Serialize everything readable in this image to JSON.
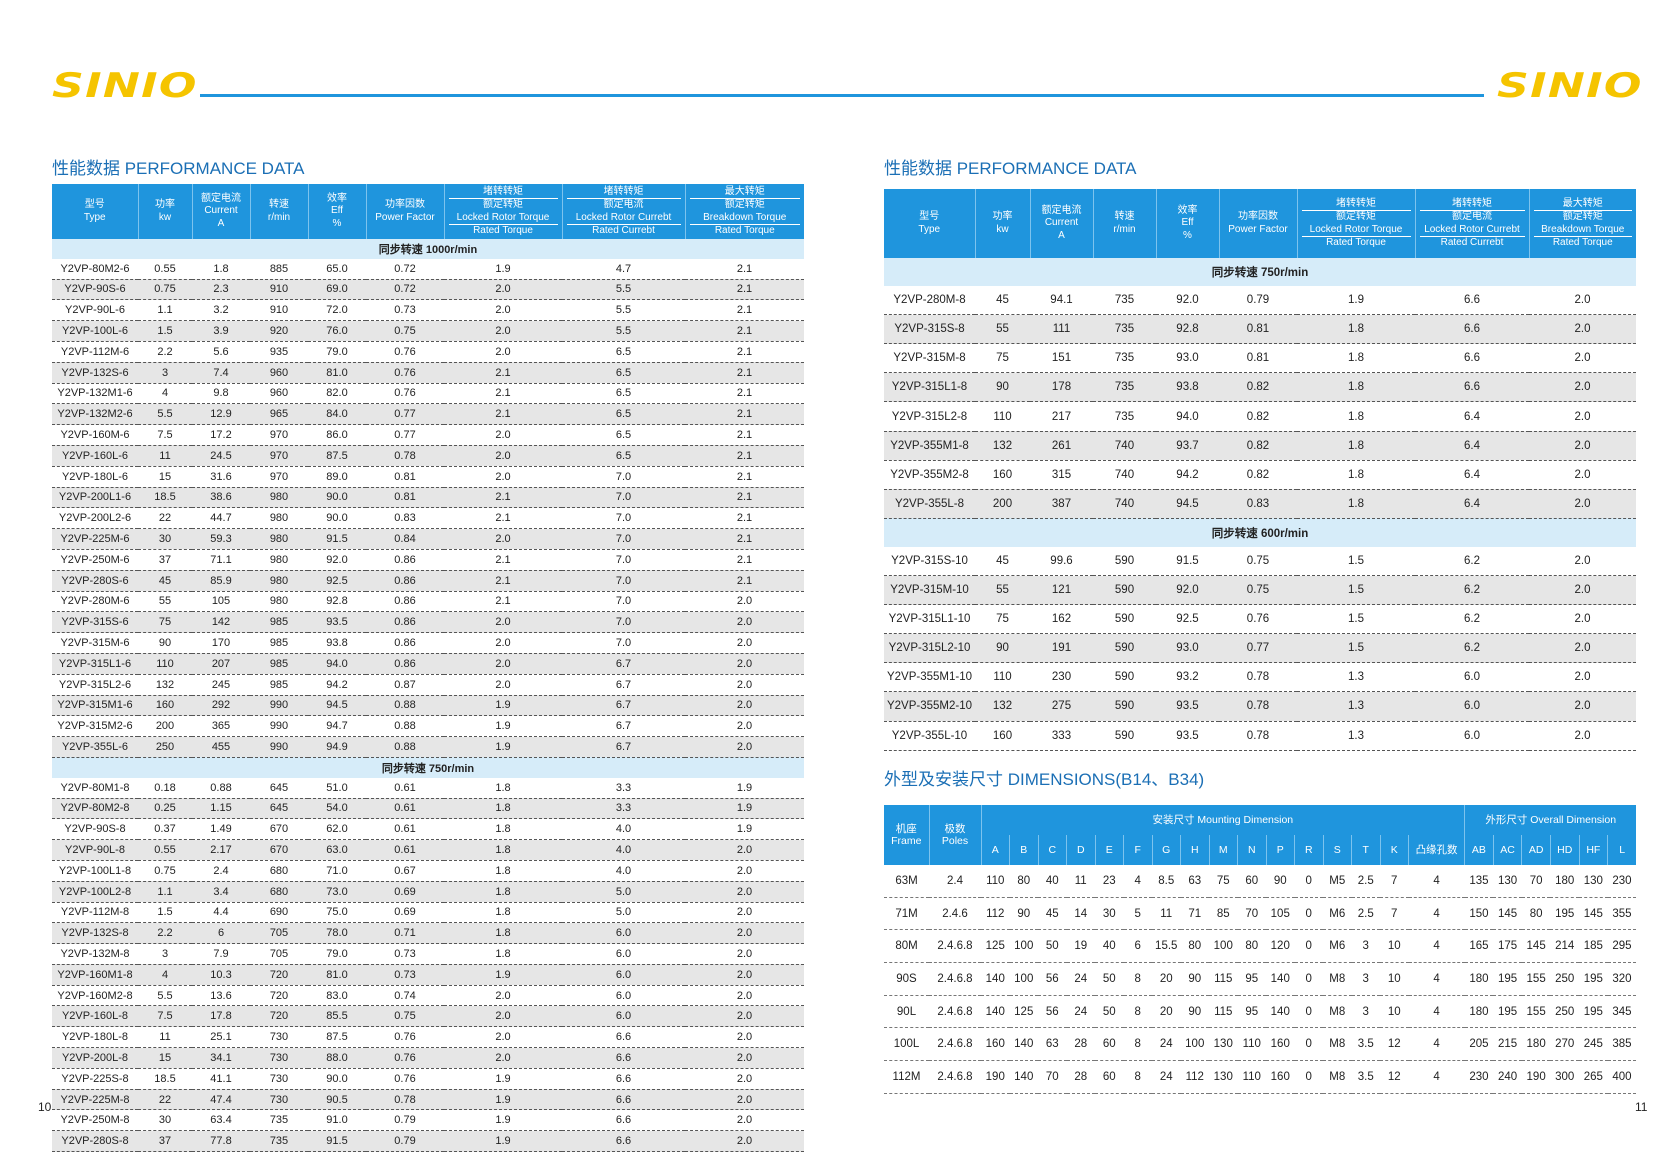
{
  "header": {
    "logo_left": "SINIO",
    "logo_right": "SINIO"
  },
  "left": {
    "title": "性能数据 PERFORMANCE DATA",
    "page_number": "10",
    "table": {
      "columns": [
        [
          "型号",
          "Type"
        ],
        [
          "功率",
          "kw"
        ],
        [
          "额定电流",
          "Current",
          "A"
        ],
        [
          "转速",
          "r/min"
        ],
        [
          "效率",
          "Eff",
          "%"
        ],
        [
          "功率因数",
          "Power Factor"
        ],
        [
          "堵转转矩",
          "额定转矩",
          "Locked Rotor Torque",
          "Rated Torque"
        ],
        [
          "堵转转矩",
          "额定电流",
          "Locked Rotor Currebt",
          "Rated Currebt"
        ],
        [
          "最大转矩",
          "额定转矩",
          "Breakdown Torque",
          "Rated Torque"
        ]
      ],
      "sections": [
        {
          "label": "同步转速 1000r/min",
          "rows": [
            [
              "Y2VP-80M2-6",
              "0.55",
              "1.8",
              "885",
              "65.0",
              "0.72",
              "1.9",
              "4.7",
              "2.1"
            ],
            [
              "Y2VP-90S-6",
              "0.75",
              "2.3",
              "910",
              "69.0",
              "0.72",
              "2.0",
              "5.5",
              "2.1"
            ],
            [
              "Y2VP-90L-6",
              "1.1",
              "3.2",
              "910",
              "72.0",
              "0.73",
              "2.0",
              "5.5",
              "2.1"
            ],
            [
              "Y2VP-100L-6",
              "1.5",
              "3.9",
              "920",
              "76.0",
              "0.75",
              "2.0",
              "5.5",
              "2.1"
            ],
            [
              "Y2VP-112M-6",
              "2.2",
              "5.6",
              "935",
              "79.0",
              "0.76",
              "2.0",
              "6.5",
              "2.1"
            ],
            [
              "Y2VP-132S-6",
              "3",
              "7.4",
              "960",
              "81.0",
              "0.76",
              "2.1",
              "6.5",
              "2.1"
            ],
            [
              "Y2VP-132M1-6",
              "4",
              "9.8",
              "960",
              "82.0",
              "0.76",
              "2.1",
              "6.5",
              "2.1"
            ],
            [
              "Y2VP-132M2-6",
              "5.5",
              "12.9",
              "965",
              "84.0",
              "0.77",
              "2.1",
              "6.5",
              "2.1"
            ],
            [
              "Y2VP-160M-6",
              "7.5",
              "17.2",
              "970",
              "86.0",
              "0.77",
              "2.0",
              "6.5",
              "2.1"
            ],
            [
              "Y2VP-160L-6",
              "11",
              "24.5",
              "970",
              "87.5",
              "0.78",
              "2.0",
              "6.5",
              "2.1"
            ],
            [
              "Y2VP-180L-6",
              "15",
              "31.6",
              "970",
              "89.0",
              "0.81",
              "2.0",
              "7.0",
              "2.1"
            ],
            [
              "Y2VP-200L1-6",
              "18.5",
              "38.6",
              "980",
              "90.0",
              "0.81",
              "2.1",
              "7.0",
              "2.1"
            ],
            [
              "Y2VP-200L2-6",
              "22",
              "44.7",
              "980",
              "90.0",
              "0.83",
              "2.1",
              "7.0",
              "2.1"
            ],
            [
              "Y2VP-225M-6",
              "30",
              "59.3",
              "980",
              "91.5",
              "0.84",
              "2.0",
              "7.0",
              "2.1"
            ],
            [
              "Y2VP-250M-6",
              "37",
              "71.1",
              "980",
              "92.0",
              "0.86",
              "2.1",
              "7.0",
              "2.1"
            ],
            [
              "Y2VP-280S-6",
              "45",
              "85.9",
              "980",
              "92.5",
              "0.86",
              "2.1",
              "7.0",
              "2.1"
            ],
            [
              "Y2VP-280M-6",
              "55",
              "105",
              "980",
              "92.8",
              "0.86",
              "2.1",
              "7.0",
              "2.0"
            ],
            [
              "Y2VP-315S-6",
              "75",
              "142",
              "985",
              "93.5",
              "0.86",
              "2.0",
              "7.0",
              "2.0"
            ],
            [
              "Y2VP-315M-6",
              "90",
              "170",
              "985",
              "93.8",
              "0.86",
              "2.0",
              "7.0",
              "2.0"
            ],
            [
              "Y2VP-315L1-6",
              "110",
              "207",
              "985",
              "94.0",
              "0.86",
              "2.0",
              "6.7",
              "2.0"
            ],
            [
              "Y2VP-315L2-6",
              "132",
              "245",
              "985",
              "94.2",
              "0.87",
              "2.0",
              "6.7",
              "2.0"
            ],
            [
              "Y2VP-315M1-6",
              "160",
              "292",
              "990",
              "94.5",
              "0.88",
              "1.9",
              "6.7",
              "2.0"
            ],
            [
              "Y2VP-315M2-6",
              "200",
              "365",
              "990",
              "94.7",
              "0.88",
              "1.9",
              "6.7",
              "2.0"
            ],
            [
              "Y2VP-355L-6",
              "250",
              "455",
              "990",
              "94.9",
              "0.88",
              "1.9",
              "6.7",
              "2.0"
            ]
          ]
        },
        {
          "label": "同步转速 750r/min",
          "rows": [
            [
              "Y2VP-80M1-8",
              "0.18",
              "0.88",
              "645",
              "51.0",
              "0.61",
              "1.8",
              "3.3",
              "1.9"
            ],
            [
              "Y2VP-80M2-8",
              "0.25",
              "1.15",
              "645",
              "54.0",
              "0.61",
              "1.8",
              "3.3",
              "1.9"
            ],
            [
              "Y2VP-90S-8",
              "0.37",
              "1.49",
              "670",
              "62.0",
              "0.61",
              "1.8",
              "4.0",
              "1.9"
            ],
            [
              "Y2VP-90L-8",
              "0.55",
              "2.17",
              "670",
              "63.0",
              "0.61",
              "1.8",
              "4.0",
              "2.0"
            ],
            [
              "Y2VP-100L1-8",
              "0.75",
              "2.4",
              "680",
              "71.0",
              "0.67",
              "1.8",
              "4.0",
              "2.0"
            ],
            [
              "Y2VP-100L2-8",
              "1.1",
              "3.4",
              "680",
              "73.0",
              "0.69",
              "1.8",
              "5.0",
              "2.0"
            ],
            [
              "Y2VP-112M-8",
              "1.5",
              "4.4",
              "690",
              "75.0",
              "0.69",
              "1.8",
              "5.0",
              "2.0"
            ],
            [
              "Y2VP-132S-8",
              "2.2",
              "6",
              "705",
              "78.0",
              "0.71",
              "1.8",
              "6.0",
              "2.0"
            ],
            [
              "Y2VP-132M-8",
              "3",
              "7.9",
              "705",
              "79.0",
              "0.73",
              "1.8",
              "6.0",
              "2.0"
            ],
            [
              "Y2VP-160M1-8",
              "4",
              "10.3",
              "720",
              "81.0",
              "0.73",
              "1.9",
              "6.0",
              "2.0"
            ],
            [
              "Y2VP-160M2-8",
              "5.5",
              "13.6",
              "720",
              "83.0",
              "0.74",
              "2.0",
              "6.0",
              "2.0"
            ],
            [
              "Y2VP-160L-8",
              "7.5",
              "17.8",
              "720",
              "85.5",
              "0.75",
              "2.0",
              "6.0",
              "2.0"
            ],
            [
              "Y2VP-180L-8",
              "11",
              "25.1",
              "730",
              "87.5",
              "0.76",
              "2.0",
              "6.6",
              "2.0"
            ],
            [
              "Y2VP-200L-8",
              "15",
              "34.1",
              "730",
              "88.0",
              "0.76",
              "2.0",
              "6.6",
              "2.0"
            ],
            [
              "Y2VP-225S-8",
              "18.5",
              "41.1",
              "730",
              "90.0",
              "0.76",
              "1.9",
              "6.6",
              "2.0"
            ],
            [
              "Y2VP-225M-8",
              "22",
              "47.4",
              "730",
              "90.5",
              "0.78",
              "1.9",
              "6.6",
              "2.0"
            ],
            [
              "Y2VP-250M-8",
              "30",
              "63.4",
              "735",
              "91.0",
              "0.79",
              "1.9",
              "6.6",
              "2.0"
            ],
            [
              "Y2VP-280S-8",
              "37",
              "77.8",
              "735",
              "91.5",
              "0.79",
              "1.9",
              "6.6",
              "2.0"
            ]
          ]
        }
      ]
    }
  },
  "right": {
    "title": "性能数据 PERFORMANCE DATA",
    "page_number": "11",
    "table": {
      "columns": [
        [
          "型号",
          "Type"
        ],
        [
          "功率",
          "kw"
        ],
        [
          "额定电流",
          "Current",
          "A"
        ],
        [
          "转速",
          "r/min"
        ],
        [
          "效率",
          "Eff",
          "%"
        ],
        [
          "功率因数",
          "Power Factor"
        ],
        [
          "堵转转矩",
          "额定转矩",
          "Locked Rotor Torque",
          "Rated Torque"
        ],
        [
          "堵转转矩",
          "额定电流",
          "Locked Rotor Currebt",
          "Rated Currebt"
        ],
        [
          "最大转矩",
          "额定转矩",
          "Breakdown Torque",
          "Rated Torque"
        ]
      ],
      "sections": [
        {
          "label": "同步转速 750r/min",
          "rows": [
            [
              "Y2VP-280M-8",
              "45",
              "94.1",
              "735",
              "92.0",
              "0.79",
              "1.9",
              "6.6",
              "2.0"
            ],
            [
              "Y2VP-315S-8",
              "55",
              "111",
              "735",
              "92.8",
              "0.81",
              "1.8",
              "6.6",
              "2.0"
            ],
            [
              "Y2VP-315M-8",
              "75",
              "151",
              "735",
              "93.0",
              "0.81",
              "1.8",
              "6.6",
              "2.0"
            ],
            [
              "Y2VP-315L1-8",
              "90",
              "178",
              "735",
              "93.8",
              "0.82",
              "1.8",
              "6.6",
              "2.0"
            ],
            [
              "Y2VP-315L2-8",
              "110",
              "217",
              "735",
              "94.0",
              "0.82",
              "1.8",
              "6.4",
              "2.0"
            ],
            [
              "Y2VP-355M1-8",
              "132",
              "261",
              "740",
              "93.7",
              "0.82",
              "1.8",
              "6.4",
              "2.0"
            ],
            [
              "Y2VP-355M2-8",
              "160",
              "315",
              "740",
              "94.2",
              "0.82",
              "1.8",
              "6.4",
              "2.0"
            ],
            [
              "Y2VP-355L-8",
              "200",
              "387",
              "740",
              "94.5",
              "0.83",
              "1.8",
              "6.4",
              "2.0"
            ]
          ]
        },
        {
          "label": "同步转速 600r/min",
          "rows": [
            [
              "Y2VP-315S-10",
              "45",
              "99.6",
              "590",
              "91.5",
              "0.75",
              "1.5",
              "6.2",
              "2.0"
            ],
            [
              "Y2VP-315M-10",
              "55",
              "121",
              "590",
              "92.0",
              "0.75",
              "1.5",
              "6.2",
              "2.0"
            ],
            [
              "Y2VP-315L1-10",
              "75",
              "162",
              "590",
              "92.5",
              "0.76",
              "1.5",
              "6.2",
              "2.0"
            ],
            [
              "Y2VP-315L2-10",
              "90",
              "191",
              "590",
              "93.0",
              "0.77",
              "1.5",
              "6.2",
              "2.0"
            ],
            [
              "Y2VP-355M1-10",
              "110",
              "230",
              "590",
              "93.2",
              "0.78",
              "1.3",
              "6.0",
              "2.0"
            ],
            [
              "Y2VP-355M2-10",
              "132",
              "275",
              "590",
              "93.5",
              "0.78",
              "1.3",
              "6.0",
              "2.0"
            ],
            [
              "Y2VP-355L-10",
              "160",
              "333",
              "590",
              "93.5",
              "0.78",
              "1.3",
              "6.0",
              "2.0"
            ]
          ]
        }
      ]
    },
    "dimensions": {
      "title": "外型及安装尺寸  DIMENSIONS(B14、B34)",
      "table": {
        "frame_header": [
          "机座",
          "Frame"
        ],
        "poles_header": [
          "极数",
          "Poles"
        ],
        "groups": [
          {
            "label": "安装尺寸  Mounting Dimension",
            "columns": [
              "A",
              "B",
              "C",
              "D",
              "E",
              "F",
              "G",
              "H",
              "M",
              "N",
              "P",
              "R",
              "S",
              "T",
              "K",
              "凸缘孔数"
            ]
          },
          {
            "label": "外形尺寸  Overall Dimension",
            "columns": [
              "AB",
              "AC",
              "AD",
              "HD",
              "HF",
              "L"
            ]
          }
        ],
        "rows": [
          [
            "63M",
            "2.4",
            "110",
            "80",
            "40",
            "11",
            "23",
            "4",
            "8.5",
            "63",
            "75",
            "60",
            "90",
            "0",
            "M5",
            "2.5",
            "7",
            "4",
            "135",
            "130",
            "70",
            "180",
            "130",
            "230"
          ],
          [
            "71M",
            "2.4.6",
            "112",
            "90",
            "45",
            "14",
            "30",
            "5",
            "11",
            "71",
            "85",
            "70",
            "105",
            "0",
            "M6",
            "2.5",
            "7",
            "4",
            "150",
            "145",
            "80",
            "195",
            "145",
            "355"
          ],
          [
            "80M",
            "2.4.6.8",
            "125",
            "100",
            "50",
            "19",
            "40",
            "6",
            "15.5",
            "80",
            "100",
            "80",
            "120",
            "0",
            "M6",
            "3",
            "10",
            "4",
            "165",
            "175",
            "145",
            "214",
            "185",
            "295"
          ],
          [
            "90S",
            "2.4.6.8",
            "140",
            "100",
            "56",
            "24",
            "50",
            "8",
            "20",
            "90",
            "115",
            "95",
            "140",
            "0",
            "M8",
            "3",
            "10",
            "4",
            "180",
            "195",
            "155",
            "250",
            "195",
            "320"
          ],
          [
            "90L",
            "2.4.6.8",
            "140",
            "125",
            "56",
            "24",
            "50",
            "8",
            "20",
            "90",
            "115",
            "95",
            "140",
            "0",
            "M8",
            "3",
            "10",
            "4",
            "180",
            "195",
            "155",
            "250",
            "195",
            "345"
          ],
          [
            "100L",
            "2.4.6.8",
            "160",
            "140",
            "63",
            "28",
            "60",
            "8",
            "24",
            "100",
            "130",
            "110",
            "160",
            "0",
            "M8",
            "3.5",
            "12",
            "4",
            "205",
            "215",
            "180",
            "270",
            "245",
            "385"
          ],
          [
            "112M",
            "2.4.6.8",
            "190",
            "140",
            "70",
            "28",
            "60",
            "8",
            "24",
            "112",
            "130",
            "110",
            "160",
            "0",
            "M8",
            "3.5",
            "12",
            "4",
            "230",
            "240",
            "190",
            "300",
            "265",
            "400"
          ]
        ]
      }
    }
  }
}
